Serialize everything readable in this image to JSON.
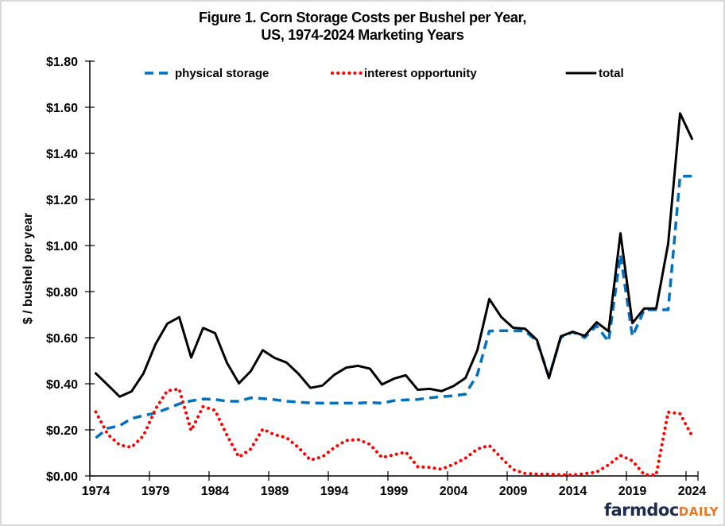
{
  "chart_data": {
    "type": "line",
    "title": "Figure 1.  Corn Storage Costs per Bushel per Year,",
    "subtitle": "US, 1974-2024 Marketing Years",
    "xlabel": "",
    "ylabel": "$ / bushel per year",
    "ylim": [
      0,
      1.8
    ],
    "y_ticks": [
      0,
      0.2,
      0.4,
      0.6,
      0.8,
      1.0,
      1.2,
      1.4,
      1.6,
      1.8
    ],
    "y_tick_labels": [
      "$0.00",
      "$0.20",
      "$0.40",
      "$0.60",
      "$0.80",
      "$1.00",
      "$1.20",
      "$1.40",
      "$1.60",
      "$1.80"
    ],
    "x_tick_labels": [
      "1974",
      "1979",
      "1984",
      "1989",
      "1994",
      "1999",
      "2004",
      "2009",
      "2014",
      "2019",
      "2024"
    ],
    "grid": false,
    "legend_position": "top",
    "x": [
      1974,
      1975,
      1976,
      1977,
      1978,
      1979,
      1980,
      1981,
      1982,
      1983,
      1984,
      1985,
      1986,
      1987,
      1988,
      1989,
      1990,
      1991,
      1992,
      1993,
      1994,
      1995,
      1996,
      1997,
      1998,
      1999,
      2000,
      2001,
      2002,
      2003,
      2004,
      2005,
      2006,
      2007,
      2008,
      2009,
      2010,
      2011,
      2012,
      2013,
      2014,
      2015,
      2016,
      2017,
      2018,
      2019,
      2020,
      2021,
      2022,
      2023,
      2024
    ],
    "series": [
      {
        "name": "physical storage",
        "style": "dashed",
        "color": "#0070c0",
        "values": [
          0.165,
          0.207,
          0.218,
          0.249,
          0.262,
          0.273,
          0.292,
          0.313,
          0.326,
          0.334,
          0.332,
          0.324,
          0.324,
          0.339,
          0.336,
          0.331,
          0.324,
          0.32,
          0.317,
          0.316,
          0.316,
          0.316,
          0.316,
          0.319,
          0.316,
          0.327,
          0.33,
          0.332,
          0.339,
          0.344,
          0.348,
          0.355,
          0.44,
          0.629,
          0.63,
          0.63,
          0.629,
          0.585,
          0.43,
          0.601,
          0.625,
          0.6,
          0.652,
          0.583,
          0.96,
          0.606,
          0.721,
          0.721,
          0.721,
          1.301,
          1.301
        ]
      },
      {
        "name": "interest opportunity",
        "style": "dotted",
        "color": "#ff0000",
        "values": [
          0.278,
          0.181,
          0.134,
          0.124,
          0.175,
          0.29,
          0.37,
          0.377,
          0.197,
          0.301,
          0.285,
          0.177,
          0.082,
          0.117,
          0.203,
          0.179,
          0.166,
          0.123,
          0.069,
          0.083,
          0.123,
          0.154,
          0.158,
          0.137,
          0.08,
          0.092,
          0.103,
          0.04,
          0.037,
          0.029,
          0.051,
          0.077,
          0.117,
          0.132,
          0.079,
          0.028,
          0.011,
          0.008,
          0.008,
          0.005,
          0.004,
          0.01,
          0.017,
          0.048,
          0.089,
          0.066,
          0.005,
          0.005,
          0.277,
          0.27,
          0.174
        ]
      },
      {
        "name": "total",
        "style": "solid",
        "color": "#000000",
        "values": [
          0.445,
          0.395,
          0.344,
          0.367,
          0.445,
          0.571,
          0.661,
          0.689,
          0.514,
          0.642,
          0.62,
          0.491,
          0.402,
          0.455,
          0.546,
          0.512,
          0.492,
          0.443,
          0.382,
          0.392,
          0.439,
          0.47,
          0.478,
          0.465,
          0.397,
          0.422,
          0.437,
          0.374,
          0.378,
          0.368,
          0.39,
          0.425,
          0.546,
          0.768,
          0.69,
          0.643,
          0.639,
          0.59,
          0.425,
          0.606,
          0.626,
          0.608,
          0.667,
          0.628,
          1.053,
          0.663,
          0.727,
          0.727,
          1.008,
          1.573,
          1.463
        ]
      }
    ]
  },
  "logo": {
    "part1": "farmdoc",
    "part2": "DAILY"
  }
}
